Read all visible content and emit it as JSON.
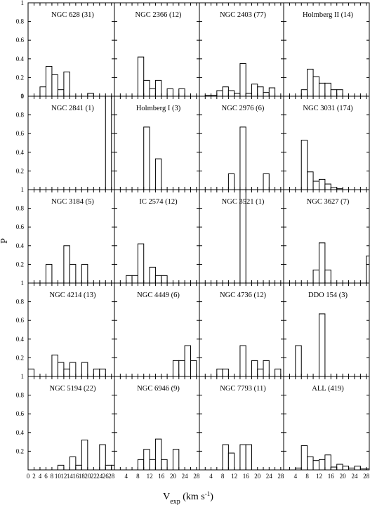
{
  "chart_data": {
    "type": "bar",
    "layout": "histogram-grid",
    "rows": 5,
    "cols": 4,
    "ylabel": "P",
    "xlabel": {
      "main": "V",
      "sub": "exp",
      "unit_pre": " (km s",
      "unit_sup": "-1",
      "unit_post": ")"
    },
    "ylim": [
      0,
      1
    ],
    "xlim": [
      0,
      29
    ],
    "bin_width": 2,
    "yticks": [
      "0",
      "0.2",
      "0.4",
      "0.6",
      "0.8",
      "1"
    ],
    "yticks_other_rows": [
      "0.2",
      "0.4",
      "0.6",
      "0.8",
      "1"
    ],
    "xticks": [
      "0",
      "2",
      "4",
      "6",
      "8",
      "10",
      "12",
      "14",
      "16",
      "18",
      "20",
      "22",
      "24",
      "26",
      "28"
    ],
    "xticks_other_cols": [
      "4",
      "8",
      "12",
      "16",
      "20",
      "24",
      "28"
    ],
    "panels": [
      {
        "title": "NGC 628 (31)",
        "bins": [
          [
            5,
            0.1
          ],
          [
            7,
            0.32
          ],
          [
            9,
            0.23
          ],
          [
            11,
            0.07
          ],
          [
            13,
            0.26
          ],
          [
            21,
            0.03
          ]
        ]
      },
      {
        "title": "NGC 2366 (12)",
        "bins": [
          [
            9,
            0.42
          ],
          [
            11,
            0.17
          ],
          [
            13,
            0.08
          ],
          [
            15,
            0.17
          ],
          [
            19,
            0.08
          ],
          [
            23,
            0.08
          ]
        ]
      },
      {
        "title": "NGC 2403 (77)",
        "bins": [
          [
            3,
            0.01
          ],
          [
            5,
            0.01
          ],
          [
            7,
            0.06
          ],
          [
            9,
            0.1
          ],
          [
            11,
            0.06
          ],
          [
            13,
            0.03
          ],
          [
            15,
            0.35
          ],
          [
            17,
            0.03
          ],
          [
            19,
            0.13
          ],
          [
            21,
            0.1
          ],
          [
            23,
            0.04
          ],
          [
            25,
            0.09
          ]
        ]
      },
      {
        "title": "Holmberg II (14)",
        "bins": [
          [
            7,
            0.07
          ],
          [
            9,
            0.29
          ],
          [
            11,
            0.21
          ],
          [
            13,
            0.14
          ],
          [
            15,
            0.14
          ],
          [
            17,
            0.07
          ],
          [
            19,
            0.07
          ]
        ]
      },
      {
        "title": "NGC 2841 (1)",
        "bins": [
          [
            27,
            1.0
          ]
        ]
      },
      {
        "title": "Holmberg I (3)",
        "bins": [
          [
            11,
            0.67
          ],
          [
            15,
            0.33
          ]
        ]
      },
      {
        "title": "NGC 2976 (6)",
        "bins": [
          [
            11,
            0.17
          ],
          [
            15,
            0.67
          ],
          [
            23,
            0.17
          ]
        ]
      },
      {
        "title": "NGC 3031 (174)",
        "bins": [
          [
            7,
            0.53
          ],
          [
            9,
            0.19
          ],
          [
            11,
            0.09
          ],
          [
            13,
            0.11
          ],
          [
            15,
            0.06
          ],
          [
            17,
            0.02
          ],
          [
            19,
            0.01
          ]
        ]
      },
      {
        "title": "NGC 3184 (5)",
        "bins": [
          [
            7,
            0.2
          ],
          [
            13,
            0.4
          ],
          [
            15,
            0.2
          ],
          [
            19,
            0.2
          ]
        ]
      },
      {
        "title": "IC 2574 (12)",
        "bins": [
          [
            5,
            0.08
          ],
          [
            7,
            0.08
          ],
          [
            9,
            0.42
          ],
          [
            13,
            0.17
          ],
          [
            15,
            0.08
          ],
          [
            17,
            0.08
          ]
        ]
      },
      {
        "title": "NGC 3521 (1)",
        "bins": [
          [
            15,
            1.0
          ]
        ]
      },
      {
        "title": "NGC 3627 (7)",
        "bins": [
          [
            11,
            0.14
          ],
          [
            13,
            0.43
          ],
          [
            15,
            0.14
          ],
          [
            29,
            0.29
          ]
        ]
      },
      {
        "title": "NGC 4214 (13)",
        "bins": [
          [
            1,
            0.08
          ],
          [
            9,
            0.23
          ],
          [
            11,
            0.15
          ],
          [
            13,
            0.08
          ],
          [
            15,
            0.15
          ],
          [
            19,
            0.15
          ],
          [
            23,
            0.08
          ],
          [
            25,
            0.08
          ]
        ]
      },
      {
        "title": "NGC 4449 (6)",
        "bins": [
          [
            21,
            0.17
          ],
          [
            23,
            0.17
          ],
          [
            25,
            0.33
          ],
          [
            27,
            0.17
          ]
        ]
      },
      {
        "title": "NGC 4736 (12)",
        "bins": [
          [
            7,
            0.08
          ],
          [
            9,
            0.08
          ],
          [
            15,
            0.33
          ],
          [
            19,
            0.17
          ],
          [
            21,
            0.08
          ],
          [
            23,
            0.17
          ],
          [
            27,
            0.08
          ]
        ]
      },
      {
        "title": "DDO 154 (3)",
        "bins": [
          [
            5,
            0.33
          ],
          [
            13,
            0.67
          ]
        ]
      },
      {
        "title": "NGC 5194 (22)",
        "bins": [
          [
            11,
            0.05
          ],
          [
            15,
            0.14
          ],
          [
            17,
            0.05
          ],
          [
            19,
            0.32
          ],
          [
            25,
            0.27
          ],
          [
            27,
            0.05
          ],
          [
            29,
            0.05
          ]
        ]
      },
      {
        "title": "NGC 6946 (9)",
        "bins": [
          [
            9,
            0.11
          ],
          [
            11,
            0.22
          ],
          [
            13,
            0.11
          ],
          [
            15,
            0.33
          ],
          [
            17,
            0.11
          ],
          [
            21,
            0.22
          ]
        ]
      },
      {
        "title": "NGC 7793 (11)",
        "bins": [
          [
            9,
            0.27
          ],
          [
            11,
            0.18
          ],
          [
            15,
            0.27
          ],
          [
            17,
            0.27
          ]
        ]
      },
      {
        "title": "ALL (419)",
        "bins": [
          [
            5,
            0.02
          ],
          [
            7,
            0.26
          ],
          [
            9,
            0.14
          ],
          [
            11,
            0.1
          ],
          [
            13,
            0.11
          ],
          [
            15,
            0.16
          ],
          [
            17,
            0.03
          ],
          [
            19,
            0.06
          ],
          [
            21,
            0.04
          ],
          [
            23,
            0.02
          ],
          [
            25,
            0.04
          ],
          [
            27,
            0.01
          ],
          [
            29,
            0.01
          ]
        ]
      }
    ]
  }
}
